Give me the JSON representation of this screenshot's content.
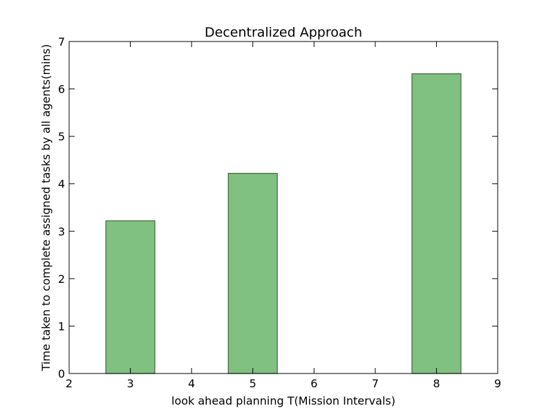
{
  "chart_data": {
    "type": "bar",
    "title": "Decentralized Approach",
    "xlabel": "look ahead planning T(Mission Intervals)",
    "ylabel": "Time taken to complete assigned tasks by all agents(mins)",
    "x": [
      3,
      5,
      8
    ],
    "values": [
      3.22,
      4.22,
      6.32
    ],
    "bar_width": 0.8,
    "xlim": [
      2,
      9
    ],
    "ylim": [
      0,
      7
    ],
    "xticks": [
      2,
      3,
      4,
      5,
      6,
      7,
      8,
      9
    ],
    "yticks": [
      0,
      1,
      2,
      3,
      4,
      5,
      6,
      7
    ],
    "bar_color": "#80c080",
    "bar_edge_color": "#4a6a4a",
    "grid": false
  }
}
